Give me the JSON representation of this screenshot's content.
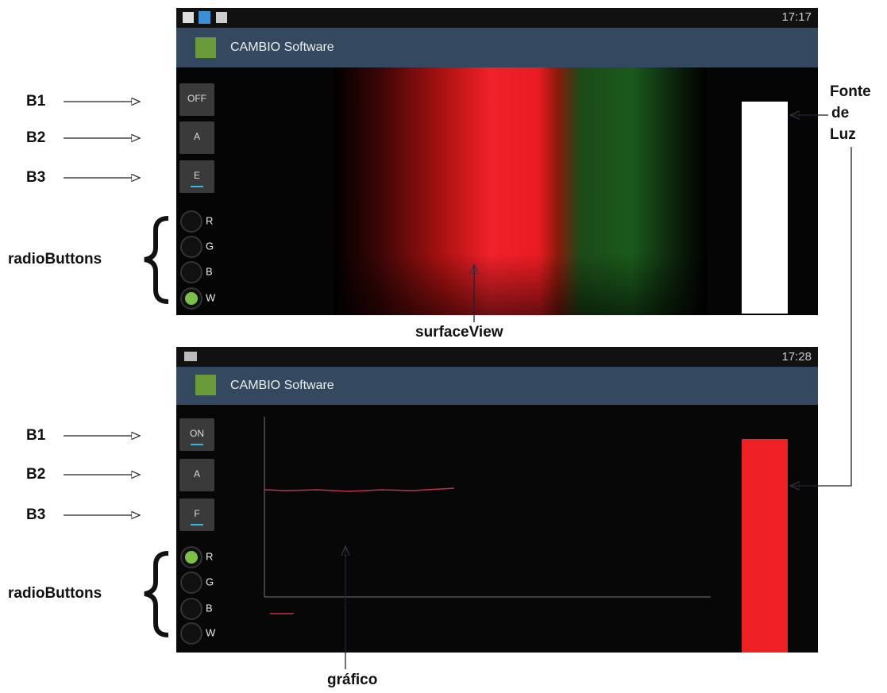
{
  "screens": [
    {
      "status_time": "17:17",
      "app_title": "CAMBIO Software",
      "buttons": [
        "OFF",
        "A",
        "E"
      ],
      "radios": [
        "R",
        "G",
        "B",
        "W"
      ]
    },
    {
      "status_time": "17:28",
      "app_title": "CAMBIO Software",
      "buttons": [
        "ON",
        "A",
        "F"
      ],
      "radios": [
        "R",
        "G",
        "B",
        "W"
      ]
    }
  ],
  "annotations": {
    "b1": "B1",
    "b2": "B2",
    "b3": "B3",
    "radio_buttons": "radioButtons",
    "surface_view": "surfaceView",
    "light_source": [
      "Fonte",
      "de",
      "Luz"
    ],
    "graph": "gráfico"
  }
}
